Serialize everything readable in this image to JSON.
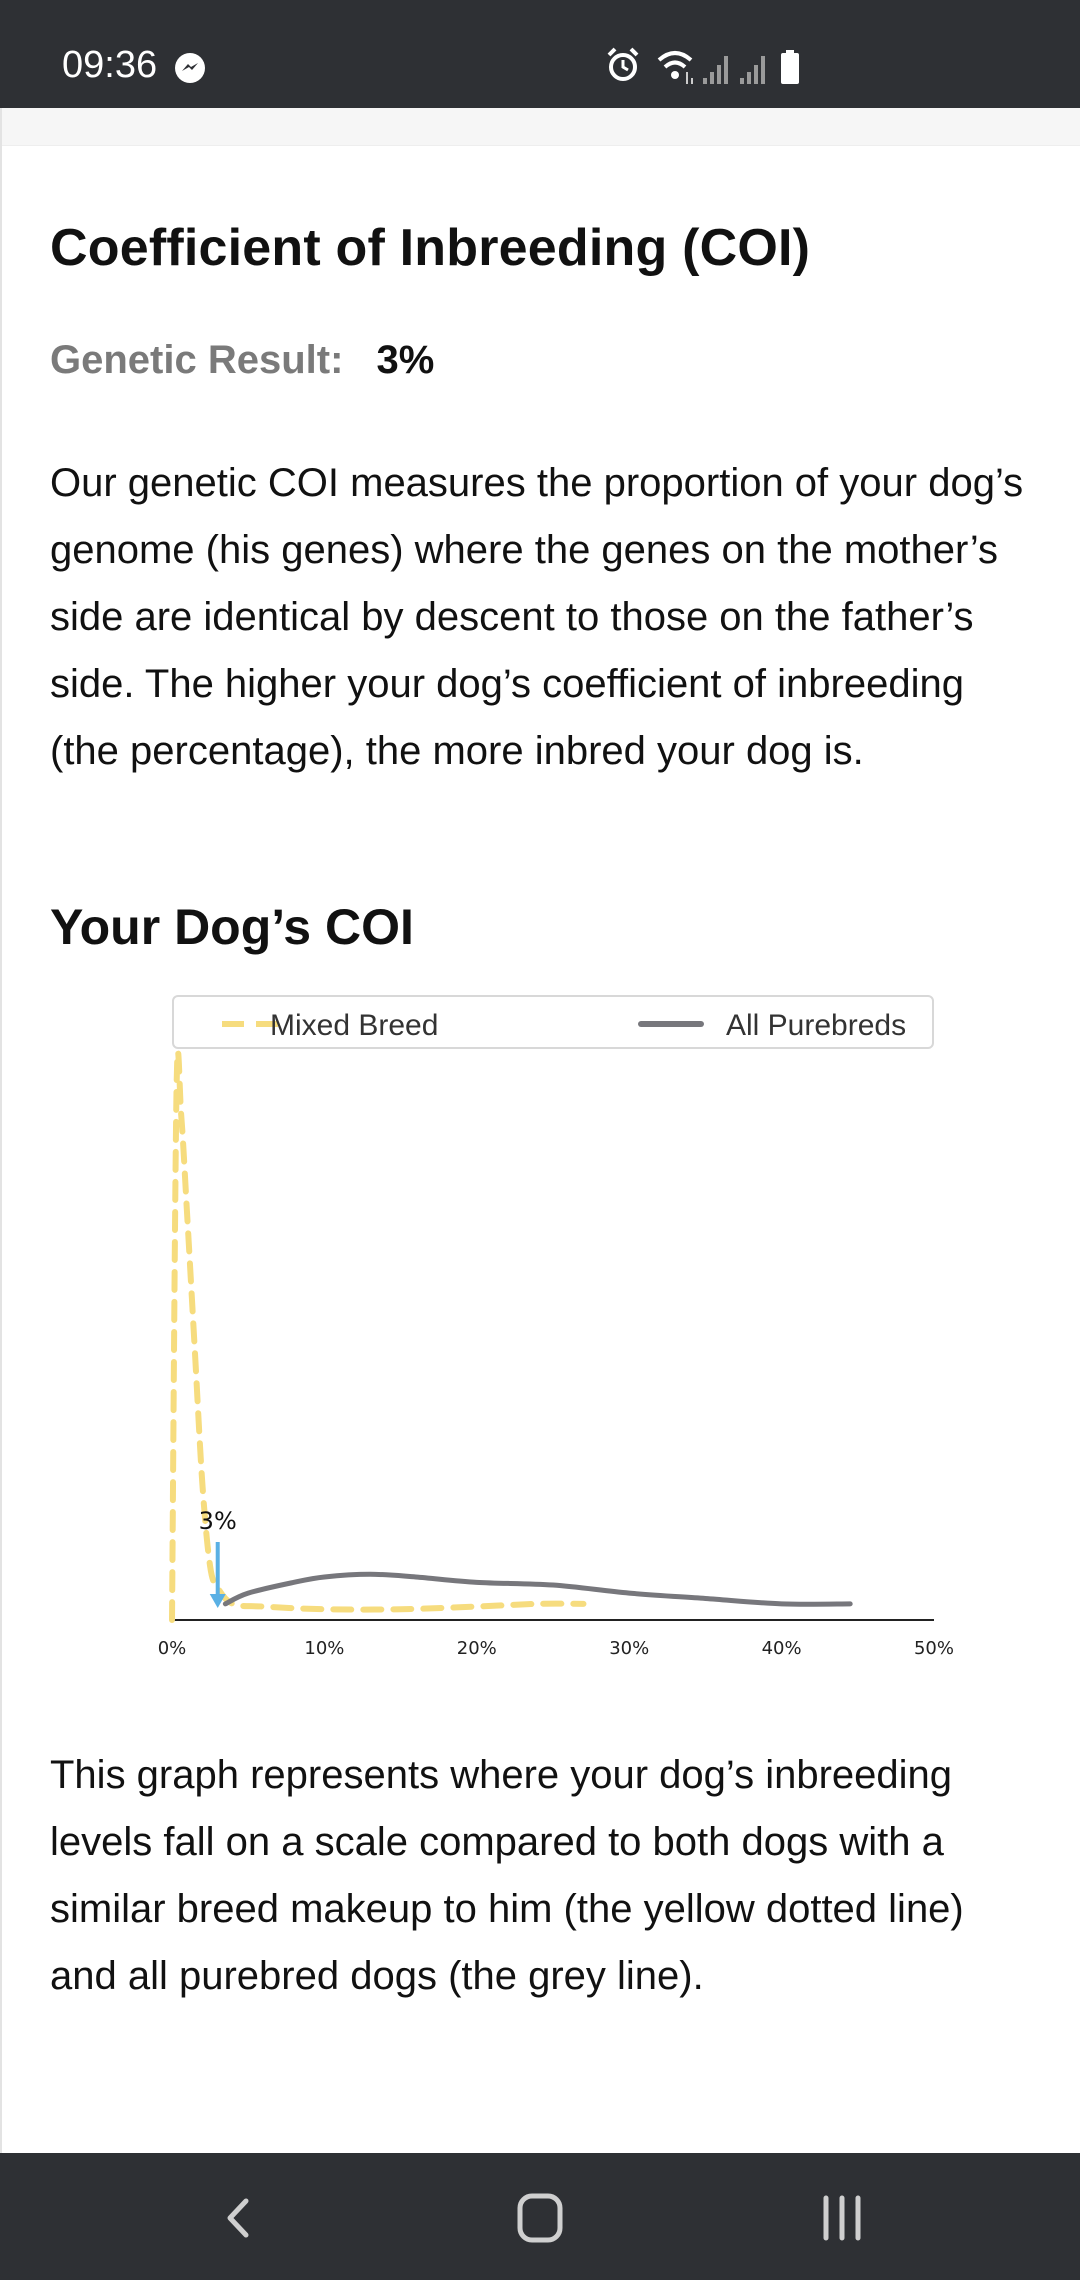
{
  "status_bar": {
    "time": "09:36",
    "icons": [
      "messenger-icon",
      "alarm-icon",
      "wifi-icon",
      "signal-icon",
      "signal-icon",
      "battery-icon"
    ]
  },
  "section": {
    "title": "Coefficient of Inbreeding (COI)",
    "genetic_result_label": "Genetic Result:",
    "genetic_result_value": "3%",
    "description": "Our genetic COI measures the proportion of your dog’s genome (his genes) where the genes on the mother’s side are identical by descent to those on the father’s side. The higher your dog’s coefficient of inbreeding (the percentage), the more inbred your dog is.",
    "subheading": "Your Dog’s COI",
    "explanation": "This graph represents where your dog’s inbreeding levels fall on a scale compared to both dogs with a similar breed makeup to him (the yellow dotted line) and all purebred dogs (the grey line)."
  },
  "chart_data": {
    "type": "line",
    "x_ticks": [
      "0%",
      "10%",
      "20%",
      "30%",
      "40%",
      "50%"
    ],
    "xlim": [
      0,
      50
    ],
    "ylim": [
      0,
      1
    ],
    "grid": false,
    "legend_position": "top",
    "series": [
      {
        "name": "Mixed Breed",
        "style": "dashed",
        "color": "#f6dc7e",
        "x": [
          0,
          0.3,
          0.6,
          1.0,
          1.5,
          2.0,
          2.5,
          3.0,
          4.0,
          6.0,
          10.0,
          15.0,
          20.0,
          24.0,
          27.0
        ],
        "y": [
          0.0,
          0.99,
          0.94,
          0.75,
          0.5,
          0.25,
          0.1,
          0.06,
          0.03,
          0.025,
          0.02,
          0.02,
          0.025,
          0.03,
          0.03
        ]
      },
      {
        "name": "All Purebreds",
        "style": "solid",
        "color": "#77777c",
        "x": [
          3.5,
          5,
          8,
          10,
          13,
          16,
          20,
          25,
          30,
          35,
          40,
          44.5
        ],
        "y": [
          0.03,
          0.05,
          0.07,
          0.08,
          0.085,
          0.08,
          0.07,
          0.065,
          0.05,
          0.04,
          0.03,
          0.03
        ]
      }
    ],
    "marker": {
      "x": 3,
      "label": "3%",
      "color": "#5ab0e4"
    }
  },
  "nav_bar": {
    "buttons": [
      "back-icon",
      "home-icon",
      "recents-icon"
    ]
  }
}
